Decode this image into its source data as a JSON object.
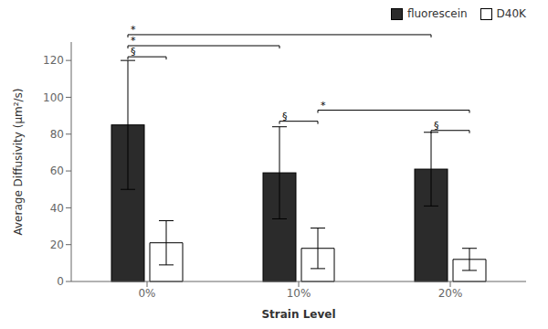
{
  "chart_data": {
    "type": "bar",
    "categories": [
      "0%",
      "10%",
      "20%"
    ],
    "series": [
      {
        "name": "fluorescein",
        "color": "#2b2b2b",
        "values": [
          85,
          59,
          61
        ],
        "errors": [
          35,
          25,
          20
        ]
      },
      {
        "name": "D40K",
        "color": "#ffffff",
        "values": [
          21,
          18,
          12
        ],
        "errors": [
          12,
          11,
          6
        ]
      }
    ],
    "xlabel": "Strain Level",
    "ylabel": "Average Diffusivity (μm²/s)",
    "ylim": [
      0,
      130
    ],
    "yticks": [
      0,
      20,
      40,
      60,
      80,
      100,
      120
    ],
    "grid": false,
    "legend": "upper right",
    "annotations": [
      {
        "text": "§",
        "start": {
          "category": "0%",
          "series": "fluorescein"
        },
        "end": {
          "category": "0%",
          "series": "D40K"
        },
        "y": 122
      },
      {
        "text": "*",
        "start": {
          "category": "0%",
          "series": "fluorescein"
        },
        "end": {
          "category": "10%",
          "series": "fluorescein"
        },
        "y": 128
      },
      {
        "text": "*",
        "start": {
          "category": "0%",
          "series": "fluorescein"
        },
        "end": {
          "category": "20%",
          "series": "fluorescein"
        },
        "y": 134
      },
      {
        "text": "§",
        "start": {
          "category": "10%",
          "series": "fluorescein"
        },
        "end": {
          "category": "10%",
          "series": "D40K"
        },
        "y": 87
      },
      {
        "text": "*",
        "start": {
          "category": "10%",
          "series": "D40K"
        },
        "end": {
          "category": "20%",
          "series": "D40K"
        },
        "y": 93
      },
      {
        "text": "§",
        "start": {
          "category": "20%",
          "series": "fluorescein"
        },
        "end": {
          "category": "20%",
          "series": "D40K"
        },
        "y": 82
      }
    ]
  }
}
